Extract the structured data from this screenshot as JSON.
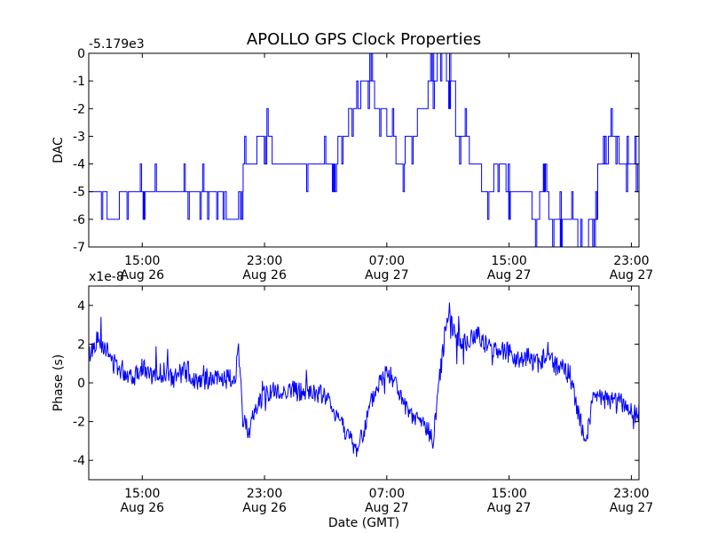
{
  "chart_data": [
    {
      "type": "line",
      "title": "APOLLO GPS Clock Properties",
      "ylabel": "DAC",
      "xlabel": "",
      "offset_label": "-5.179e3",
      "ylim": [
        -7,
        0
      ],
      "yticks": [
        "0",
        "-1",
        "-2",
        "-3",
        "-4",
        "-5",
        "-6",
        "-7"
      ],
      "xticks": [
        {
          "time": "15:00",
          "date": "Aug 26"
        },
        {
          "time": "23:00",
          "date": "Aug 26"
        },
        {
          "time": "07:00",
          "date": "Aug 27"
        },
        {
          "time": "15:00",
          "date": "Aug 27"
        },
        {
          "time": "23:00",
          "date": "Aug 27"
        }
      ],
      "xlim_hours": [
        11.5,
        47.5
      ],
      "series": [
        {
          "name": "DAC",
          "color": "#0000ff",
          "x_hours": [
            11.5,
            11.9,
            12.7,
            13.5,
            14.5,
            15.5,
            16.5,
            17.5,
            18.5,
            19.5,
            20.5,
            21.3,
            21.6,
            22.0,
            22.5,
            23.5,
            24.5,
            25.5,
            26.5,
            27.2,
            27.8,
            28.5,
            29.3,
            30.2,
            31.0,
            31.6,
            32.2,
            33.0,
            33.7,
            34.3,
            34.9,
            35.5,
            36.4,
            37.2,
            38.0,
            38.8,
            39.5,
            40.5,
            41.0,
            41.6,
            42.2,
            42.8,
            43.5,
            44.2,
            44.8,
            45.5,
            46.2,
            47.0,
            47.5
          ],
          "values": [
            -5,
            -5,
            -6,
            -5,
            -5,
            -5,
            -5,
            -5,
            -5,
            -5,
            -6,
            -5,
            -4,
            -4,
            -3,
            -4,
            -4,
            -4,
            -4,
            -4,
            -3,
            -2,
            -1,
            -2,
            -3,
            -4,
            -3,
            -2,
            -1,
            0,
            -1,
            -3,
            -4,
            -5,
            -4,
            -5,
            -5,
            -6,
            -5,
            -6,
            -6,
            -6,
            -7,
            -6,
            -4,
            -3,
            -4,
            -4,
            -3
          ]
        }
      ]
    },
    {
      "type": "line",
      "title": "",
      "ylabel": "Phase (s)",
      "xlabel": "Date (GMT)",
      "offset_label": "x1e-8",
      "ylim": [
        -5,
        5
      ],
      "yticks": [
        "4",
        "2",
        "0",
        "-2",
        "-4"
      ],
      "xticks": [
        {
          "time": "15:00",
          "date": "Aug 26"
        },
        {
          "time": "23:00",
          "date": "Aug 26"
        },
        {
          "time": "07:00",
          "date": "Aug 27"
        },
        {
          "time": "15:00",
          "date": "Aug 27"
        },
        {
          "time": "23:00",
          "date": "Aug 27"
        }
      ],
      "xlim_hours": [
        11.5,
        47.5
      ],
      "series": [
        {
          "name": "Phase",
          "color": "#0000ff",
          "x_hours": [
            11.5,
            12.0,
            12.5,
            13.0,
            13.5,
            14.0,
            14.5,
            15.0,
            15.5,
            16.0,
            16.5,
            17.0,
            17.5,
            18.0,
            18.5,
            19.0,
            19.5,
            20.0,
            20.5,
            21.0,
            21.3,
            21.6,
            22.0,
            22.5,
            23.0,
            23.5,
            24.0,
            24.5,
            25.0,
            25.5,
            26.0,
            26.5,
            27.0,
            27.5,
            28.0,
            28.5,
            29.0,
            29.5,
            30.0,
            30.5,
            31.0,
            31.5,
            32.0,
            32.5,
            33.0,
            33.5,
            34.0,
            34.5,
            35.0,
            35.5,
            36.0,
            36.5,
            37.0,
            37.5,
            38.0,
            38.5,
            39.0,
            39.5,
            40.0,
            40.5,
            41.0,
            41.5,
            42.0,
            42.5,
            43.0,
            43.5,
            44.0,
            44.5,
            45.0,
            45.5,
            46.0,
            46.5,
            47.0,
            47.5
          ],
          "values": [
            1.4,
            2.2,
            2.0,
            1.1,
            0.8,
            0.5,
            0.4,
            0.9,
            0.3,
            0.4,
            0.6,
            0.1,
            0.5,
            0.6,
            0.1,
            0.3,
            0.1,
            0.2,
            0.2,
            0.1,
            1.5,
            -2.0,
            -2.4,
            -1.2,
            -0.6,
            -0.4,
            -0.6,
            -0.3,
            -0.4,
            -0.5,
            -0.5,
            -0.6,
            -0.7,
            -1.4,
            -1.9,
            -2.8,
            -3.5,
            -2.5,
            -1.0,
            0.0,
            0.6,
            0.2,
            -1.0,
            -1.8,
            -1.9,
            -2.2,
            -3.0,
            0.5,
            3.8,
            2.4,
            2.0,
            2.2,
            2.6,
            1.9,
            1.7,
            1.8,
            1.5,
            1.2,
            1.4,
            1.2,
            1.0,
            1.4,
            0.9,
            0.7,
            0.4,
            -1.5,
            -3.0,
            -0.9,
            -0.8,
            -0.9,
            -0.7,
            -1.2,
            -1.6,
            -1.5
          ]
        }
      ]
    }
  ]
}
